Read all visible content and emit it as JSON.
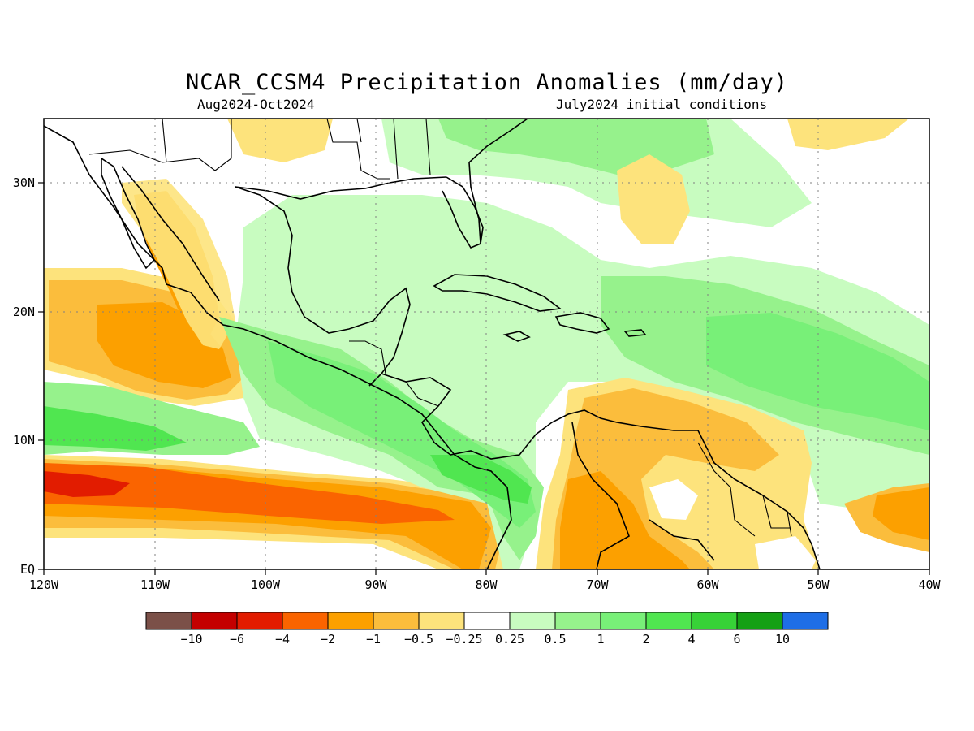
{
  "title": "NCAR_CCSM4 Precipitation Anomalies (mm/day)",
  "subtitle_left": "Aug2024-Oct2024",
  "subtitle_right": "July2024 initial conditions",
  "map": {
    "lon_range": [
      -120,
      -40
    ],
    "lat_range": [
      0,
      35
    ],
    "gridlines": "dotted",
    "x_ticks": [
      "120W",
      "110W",
      "100W",
      "90W",
      "80W",
      "70W",
      "60W",
      "50W",
      "40W"
    ],
    "y_ticks": [
      "EQ",
      "10N",
      "20N",
      "30N"
    ],
    "region": "Central America, Caribbean and northern South America",
    "patterns": [
      {
        "area": "East Pacific ITCZ band near 5-8N",
        "anomaly": "-4 to -6"
      },
      {
        "area": "Off west coast of Mexico",
        "anomaly": "-1 to -2"
      },
      {
        "area": "Central America and Caribbean Sea",
        "anomaly": "0.5 to 2"
      },
      {
        "area": "Tropical Atlantic near 12-15N",
        "anomaly": "1 to 2"
      },
      {
        "area": "Northern South America (Venezuela, Colombia)",
        "anomaly": "-0.5 to -2"
      },
      {
        "area": "Equatorial Atlantic near 5N, 40-45W",
        "anomaly": "-1 to -2"
      }
    ]
  },
  "colorbar": {
    "colors": [
      "#7b5048",
      "#c40000",
      "#e21c00",
      "#fa6400",
      "#fca000",
      "#fbbd3c",
      "#fde37c",
      "#ffffff",
      "#c8fcc0",
      "#96f28c",
      "#78f078",
      "#50e650",
      "#37d237",
      "#14a014",
      "#1e6ee6"
    ],
    "labels": [
      "-10",
      "-6",
      "-4",
      "-2",
      "-1",
      "-0.5",
      "-0.25",
      "0.25",
      "0.5",
      "1",
      "2",
      "4",
      "6",
      "10"
    ]
  }
}
